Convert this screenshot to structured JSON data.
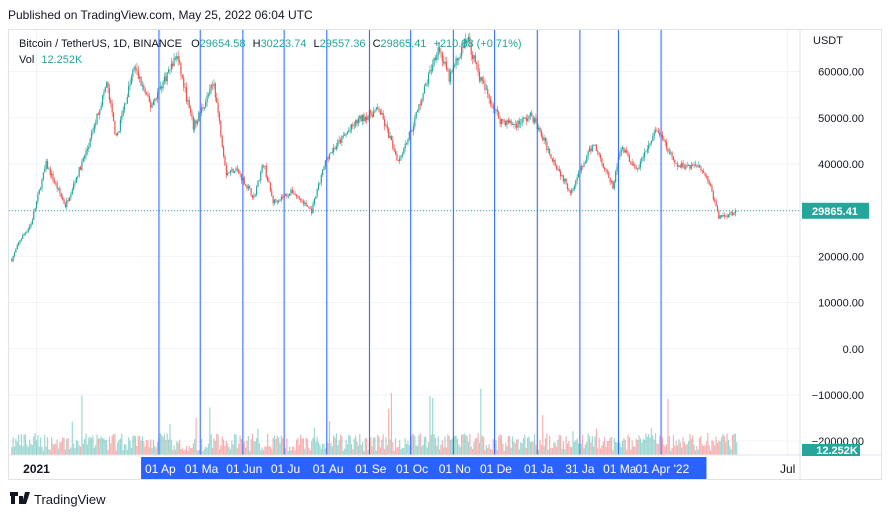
{
  "header": {
    "published": "Published on TradingView.com, May 25, 2022 06:04 UTC"
  },
  "legend": {
    "symbol": "Bitcoin / TetherUS, 1D, BINANCE",
    "o_label": "O",
    "o_value": "29654.58",
    "h_label": "H",
    "h_value": "30223.74",
    "l_label": "L",
    "l_value": "29557.36",
    "c_label": "C",
    "c_value": "29865.41",
    "change": "+210.83 (+0.71%)",
    "vol_label": "Vol",
    "vol_value": "12.252K"
  },
  "footer": {
    "brand": "TradingView"
  },
  "colors": {
    "up": "#26a69a",
    "down": "#ef5350",
    "vline": "#2962ff",
    "axis_highlight": "#2962ff",
    "price_badge": "#26a69a"
  },
  "chart_data": {
    "type": "candlestick",
    "symbol": "Bitcoin / TetherUS, 1D, BINANCE",
    "currency_label": "USDT",
    "y_ticks": [
      60000,
      50000,
      40000,
      30000,
      20000,
      10000,
      0,
      -10000,
      -20000
    ],
    "y_tick_labels": [
      "60000.00",
      "50000.00",
      "40000.00",
      "30000.00",
      "20000.00",
      "10000.00",
      "0.00",
      "−10000.00",
      "−20000.00"
    ],
    "y_range": [
      -23000,
      69000
    ],
    "x_range": [
      "2020-12-12",
      "2022-07-10"
    ],
    "x_labels": [
      {
        "date": "2021-01-01",
        "text": "2021",
        "highlight": false
      },
      {
        "date": "2021-04-01",
        "text": "01 Ap",
        "highlight": true
      },
      {
        "date": "2021-05-01",
        "text": "01 Ma",
        "highlight": true
      },
      {
        "date": "2021-06-01",
        "text": "01 Jun",
        "highlight": true
      },
      {
        "date": "2021-07-01",
        "text": "01 Ju",
        "highlight": true
      },
      {
        "date": "2021-08-01",
        "text": "01 Au",
        "highlight": true
      },
      {
        "date": "2021-09-01",
        "text": "01 Se",
        "highlight": true
      },
      {
        "date": "2021-10-01",
        "text": "01 Oc",
        "highlight": true
      },
      {
        "date": "2021-11-01",
        "text": "01 No",
        "highlight": true
      },
      {
        "date": "2021-12-01",
        "text": "01 De",
        "highlight": true
      },
      {
        "date": "2022-01-01",
        "text": "01 Ja",
        "highlight": true
      },
      {
        "date": "2022-01-31",
        "text": "31 Ja",
        "highlight": true
      },
      {
        "date": "2022-03-01",
        "text": "01 Ma",
        "highlight": true
      },
      {
        "date": "2022-04-01",
        "text": "01 Apr '22",
        "highlight": true
      },
      {
        "date": "2022-07-01",
        "text": "Jul",
        "highlight": false
      }
    ],
    "vertical_lines": [
      "2021-03-31",
      "2021-04-30",
      "2021-05-31",
      "2021-06-30",
      "2021-07-31",
      "2021-08-31",
      "2021-09-30",
      "2021-10-31",
      "2021-11-30",
      "2021-12-31",
      "2022-01-31",
      "2022-02-28",
      "2022-03-31"
    ],
    "highlight_range": [
      "2021-03-18",
      "2022-05-03"
    ],
    "last_price": 29865.41,
    "last_price_label": "29865.41",
    "last_volume_label": "12.252K",
    "close_anchors": [
      [
        "2020-12-14",
        19300
      ],
      [
        "2020-12-20",
        23500
      ],
      [
        "2020-12-28",
        27000
      ],
      [
        "2021-01-08",
        40000
      ],
      [
        "2021-01-22",
        31000
      ],
      [
        "2021-02-08",
        44000
      ],
      [
        "2021-02-21",
        57500
      ],
      [
        "2021-02-28",
        45500
      ],
      [
        "2021-03-13",
        61000
      ],
      [
        "2021-03-25",
        52500
      ],
      [
        "2021-04-13",
        63500
      ],
      [
        "2021-04-25",
        48000
      ],
      [
        "2021-05-10",
        57500
      ],
      [
        "2021-05-19",
        38000
      ],
      [
        "2021-05-26",
        39000
      ],
      [
        "2021-06-08",
        32800
      ],
      [
        "2021-06-15",
        40200
      ],
      [
        "2021-06-22",
        31800
      ],
      [
        "2021-07-06",
        34000
      ],
      [
        "2021-07-20",
        29800
      ],
      [
        "2021-07-31",
        41500
      ],
      [
        "2021-08-14",
        46500
      ],
      [
        "2021-08-23",
        49500
      ],
      [
        "2021-09-07",
        51800
      ],
      [
        "2021-09-21",
        40700
      ],
      [
        "2021-10-01",
        47800
      ],
      [
        "2021-10-20",
        65500
      ],
      [
        "2021-10-28",
        58500
      ],
      [
        "2021-11-10",
        67500
      ],
      [
        "2021-11-20",
        58000
      ],
      [
        "2021-12-04",
        49500
      ],
      [
        "2021-12-15",
        48500
      ],
      [
        "2021-12-27",
        50500
      ],
      [
        "2022-01-10",
        41800
      ],
      [
        "2022-01-24",
        34000
      ],
      [
        "2022-02-10",
        44500
      ],
      [
        "2022-02-24",
        35000
      ],
      [
        "2022-03-02",
        44000
      ],
      [
        "2022-03-13",
        38500
      ],
      [
        "2022-03-28",
        47500
      ],
      [
        "2022-04-11",
        39500
      ],
      [
        "2022-04-28",
        39800
      ],
      [
        "2022-05-05",
        36000
      ],
      [
        "2022-05-12",
        28500
      ],
      [
        "2022-05-18",
        29000
      ],
      [
        "2022-05-25",
        29865
      ]
    ],
    "volume_note": "volume histogram drawn at bottom of pane"
  }
}
